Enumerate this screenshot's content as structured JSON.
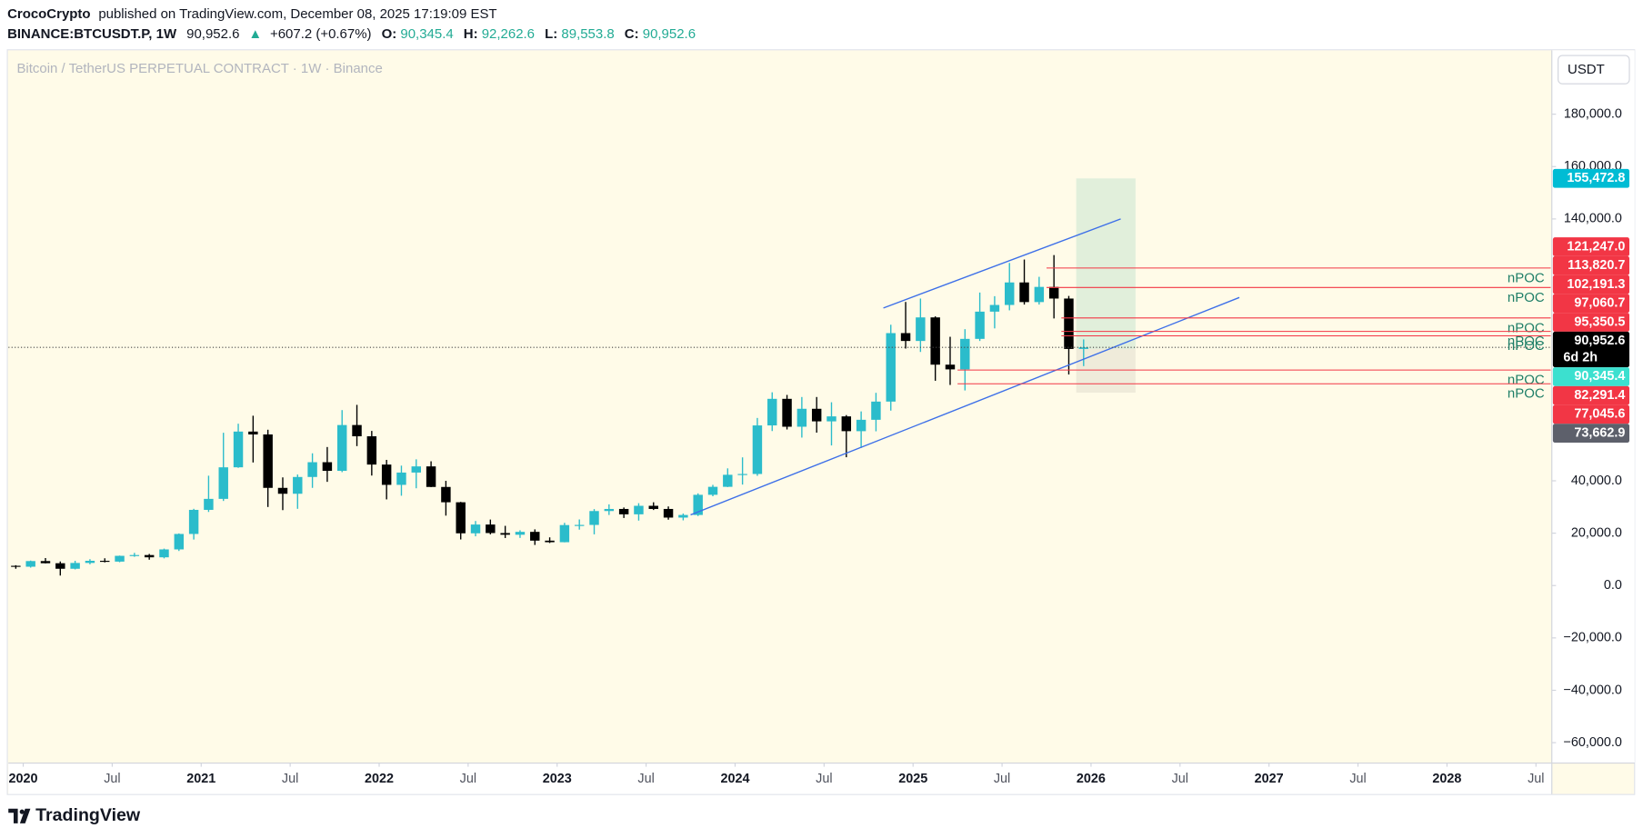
{
  "header": {
    "author": "CrocoCrypto",
    "published": "published on TradingView.com, December 08, 2025 17:19:09 EST"
  },
  "symbol_bar": {
    "symbol": "BINANCE:BTCUSDT.P, 1W",
    "last": "90,952.6",
    "change_icon": "▲",
    "change": "+607.2 (+0.67%)",
    "o_label": "O:",
    "o": "90,345.4",
    "h_label": "H:",
    "h": "92,262.6",
    "l_label": "L:",
    "l": "89,553.8",
    "c_label": "C:",
    "c": "90,952.6"
  },
  "currency_button": "USDT",
  "footer": {
    "brand": "TradingView"
  },
  "chart_data": {
    "type": "candlestick",
    "title": "Bitcoin / TetherUS PERPETUAL CONTRACT · 1W · Binance",
    "up_color": "#2bbccb",
    "down_color": "#000000",
    "x": [
      "2019-12",
      "2020-01",
      "2020-02",
      "2020-03",
      "2020-04",
      "2020-05",
      "2020-06",
      "2020-07",
      "2020-08",
      "2020-09",
      "2020-10",
      "2020-11",
      "2020-12",
      "2021-01",
      "2021-02",
      "2021-03",
      "2021-04",
      "2021-05",
      "2021-06",
      "2021-07",
      "2021-08",
      "2021-09",
      "2021-10",
      "2021-11",
      "2021-12",
      "2022-01",
      "2022-02",
      "2022-03",
      "2022-04",
      "2022-05",
      "2022-06",
      "2022-07",
      "2022-08",
      "2022-09",
      "2022-10",
      "2022-11",
      "2022-12",
      "2023-01",
      "2023-02",
      "2023-03",
      "2023-04",
      "2023-05",
      "2023-06",
      "2023-07",
      "2023-08",
      "2023-09",
      "2023-10",
      "2023-11",
      "2023-12",
      "2024-01",
      "2024-02",
      "2024-03",
      "2024-04",
      "2024-05",
      "2024-06",
      "2024-07",
      "2024-08",
      "2024-09",
      "2024-10",
      "2024-11",
      "2024-12",
      "2025-01",
      "2025-02",
      "2025-03",
      "2025-04",
      "2025-05",
      "2025-06",
      "2025-07",
      "2025-08",
      "2025-09",
      "2025-10",
      "2025-11",
      "2025-12"
    ],
    "open": [
      7540,
      7190,
      9350,
      8520,
      6410,
      8630,
      9450,
      9140,
      11350,
      11650,
      10780,
      13800,
      19700,
      28900,
      33100,
      45150,
      58800,
      57700,
      37300,
      35050,
      41460,
      47100,
      43800,
      61300,
      57000,
      46200,
      38450,
      43150,
      45500,
      37650,
      31800,
      19950,
      23300,
      20050,
      19400,
      20500,
      17150,
      16550,
      23100,
      23150,
      28450,
      29250,
      27200,
      30450,
      29250,
      25950,
      26950,
      34650,
      37700,
      42300,
      42600,
      61150,
      71300,
      60650,
      67500,
      62700,
      64600,
      58950,
      63300,
      70250,
      96400,
      93400,
      102400,
      84350,
      82550,
      94200,
      104600,
      107150,
      115750,
      108250,
      114050,
      109600,
      90350
    ],
    "high": [
      7750,
      9550,
      10500,
      9200,
      9470,
      10080,
      10400,
      11450,
      12480,
      12070,
      14100,
      19900,
      29300,
      41950,
      58350,
      61800,
      64850,
      59500,
      41300,
      42400,
      50500,
      52900,
      67000,
      69000,
      59050,
      47990,
      45800,
      48200,
      47450,
      40000,
      31950,
      24650,
      25200,
      22800,
      21100,
      21450,
      18400,
      23950,
      25250,
      29200,
      31000,
      29800,
      31450,
      31800,
      30200,
      27500,
      35200,
      38450,
      44750,
      48950,
      64000,
      73800,
      72800,
      72000,
      72000,
      70000,
      65100,
      66500,
      73600,
      99600,
      108300,
      109600,
      102800,
      95000,
      97900,
      111900,
      110500,
      123200,
      124500,
      117900,
      126200,
      110600,
      94000
    ],
    "low": [
      6430,
      6850,
      8450,
      3800,
      6150,
      8110,
      8830,
      8900,
      10980,
      9870,
      10380,
      13200,
      17570,
      28100,
      32300,
      44950,
      47000,
      30000,
      28800,
      29300,
      37300,
      39600,
      43300,
      53250,
      42000,
      32900,
      34300,
      37150,
      37600,
      26700,
      17600,
      18800,
      19550,
      18150,
      18190,
      15500,
      16250,
      16500,
      21350,
      19550,
      26950,
      25800,
      24800,
      28850,
      25150,
      24900,
      26550,
      34100,
      37600,
      38550,
      41900,
      59000,
      59600,
      56500,
      58400,
      53500,
      49000,
      52550,
      58900,
      66800,
      90500,
      89200,
      78200,
      76600,
      74500,
      93400,
      98200,
      105100,
      107300,
      107300,
      102000,
      80600,
      83800
    ],
    "close": [
      7190,
      9350,
      8520,
      6410,
      8630,
      9450,
      9140,
      11350,
      11650,
      10780,
      13800,
      19700,
      28900,
      33100,
      45150,
      58800,
      57700,
      37300,
      35050,
      41460,
      47100,
      43800,
      61300,
      57000,
      46200,
      38450,
      43150,
      45500,
      37650,
      31800,
      19950,
      23300,
      20050,
      19400,
      20500,
      17150,
      16550,
      23100,
      23150,
      28450,
      29250,
      27200,
      30450,
      29250,
      25950,
      26950,
      34650,
      37700,
      42300,
      42600,
      61150,
      71300,
      60650,
      67500,
      62700,
      64600,
      58950,
      63300,
      70250,
      96400,
      93400,
      102400,
      84350,
      82550,
      94200,
      104600,
      107150,
      115750,
      108250,
      114050,
      109600,
      90350,
      90950
    ],
    "xlim": [
      "2019-12",
      "2028-08"
    ],
    "xticks": [
      {
        "value": "2020-01",
        "label": "2020"
      },
      {
        "value": "2020-07",
        "label": "Jul"
      },
      {
        "value": "2021-01",
        "label": "2021"
      },
      {
        "value": "2021-07",
        "label": "Jul"
      },
      {
        "value": "2022-01",
        "label": "2022"
      },
      {
        "value": "2022-07",
        "label": "Jul"
      },
      {
        "value": "2023-01",
        "label": "2023"
      },
      {
        "value": "2023-07",
        "label": "Jul"
      },
      {
        "value": "2024-01",
        "label": "2024"
      },
      {
        "value": "2024-07",
        "label": "Jul"
      },
      {
        "value": "2025-01",
        "label": "2025"
      },
      {
        "value": "2025-07",
        "label": "Jul"
      },
      {
        "value": "2026-01",
        "label": "2026"
      },
      {
        "value": "2026-07",
        "label": "Jul"
      },
      {
        "value": "2027-01",
        "label": "2027"
      },
      {
        "value": "2027-07",
        "label": "Jul"
      },
      {
        "value": "2028-01",
        "label": "2028"
      },
      {
        "value": "2028-07",
        "label": "Jul"
      }
    ],
    "ylim": [
      -67600,
      204400
    ],
    "yticks": [
      {
        "value": 180000,
        "label": "180,000.0"
      },
      {
        "value": 160000,
        "label": "160,000.0"
      },
      {
        "value": 140000,
        "label": "140,000.0"
      },
      {
        "value": 40000,
        "label": "40,000.0"
      },
      {
        "value": 20000,
        "label": "20,000.0"
      },
      {
        "value": 0,
        "label": "0.0"
      },
      {
        "value": -20000,
        "label": "−20,000.0"
      },
      {
        "value": -40000,
        "label": "−40,000.0"
      },
      {
        "value": -60000,
        "label": "−60,000.0"
      }
    ],
    "levels": [
      {
        "name": "nPOC",
        "value": 121247.0,
        "label": "121,247.0",
        "from": "2025-10"
      },
      {
        "name": "nPOC",
        "value": 113820.7,
        "label": "113,820.7",
        "from": "2025-10"
      },
      {
        "name": "nPOC",
        "value": 102191.3,
        "label": "102,191.3",
        "from": "2025-11"
      },
      {
        "name": "nPOC",
        "value": 97060.7,
        "label": "97,060.7",
        "from": "2025-11"
      },
      {
        "name": "nPOC",
        "value": 95350.5,
        "label": "95,350.5",
        "from": "2025-11"
      },
      {
        "name": "nPOC",
        "value": 82291.4,
        "label": "82,291.4",
        "from": "2025-04"
      },
      {
        "name": "nPOC",
        "value": 77045.6,
        "label": "77,045.6",
        "from": "2025-04"
      }
    ],
    "level_color": "#f23645",
    "last_price": {
      "value": 90952.6,
      "label": "90,952.6",
      "countdown": "6d 2h",
      "color": "#000000"
    },
    "position": {
      "from": "2025-12",
      "to": "2026-04",
      "target": {
        "value": 155472.8,
        "label": "155,472.8",
        "color": "#00bcd4"
      },
      "entry": {
        "value": 90345.4,
        "label": "90,345.4",
        "color": "#3ce0cf"
      },
      "stop": {
        "value": 73662.9,
        "label": "73,662.9",
        "color": "#5d606b"
      }
    },
    "trend_lines": [
      {
        "color": "#3d6fe8",
        "x": [
          "2024-11",
          "2026-03"
        ],
        "y": [
          106000,
          140000
        ]
      },
      {
        "color": "#3d6fe8",
        "x": [
          "2023-10",
          "2026-11"
        ],
        "y": [
          27000,
          110000
        ]
      }
    ]
  }
}
